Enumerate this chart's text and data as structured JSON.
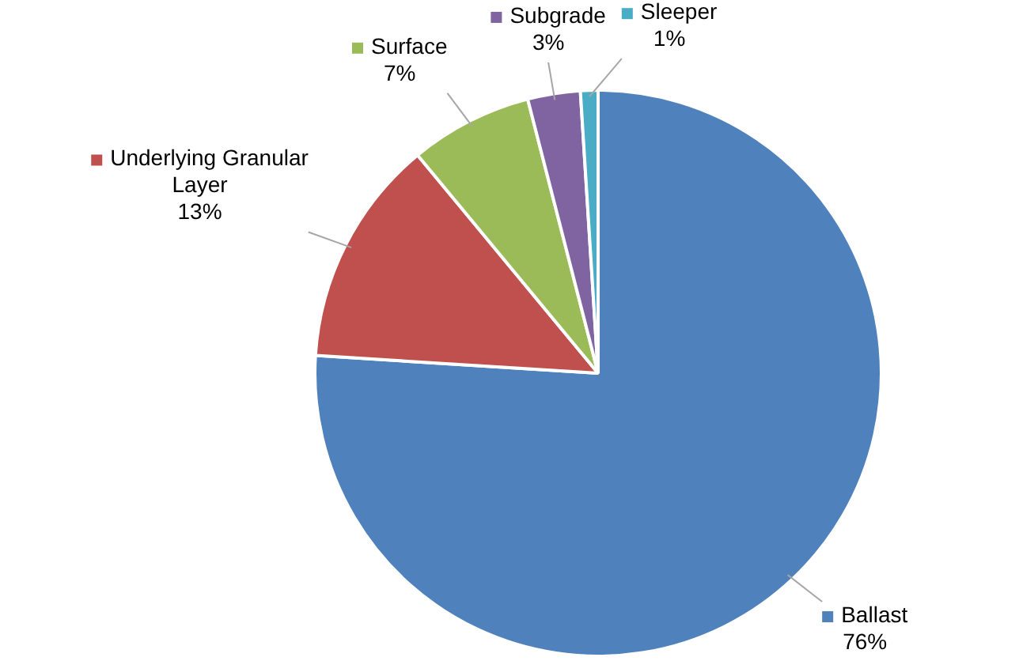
{
  "chart_data": {
    "type": "pie",
    "categories": [
      "Ballast",
      "Underlying Granular Layer",
      "Surface",
      "Subgrade",
      "Sleeper"
    ],
    "values": [
      76,
      13,
      7,
      3,
      1
    ],
    "value_labels": [
      "76%",
      "13%",
      "7%",
      "3%",
      "1%"
    ],
    "colors": [
      "#4f81bd",
      "#c0504d",
      "#9bbb59",
      "#8064a2",
      "#4bacc6"
    ],
    "legend": "top"
  }
}
